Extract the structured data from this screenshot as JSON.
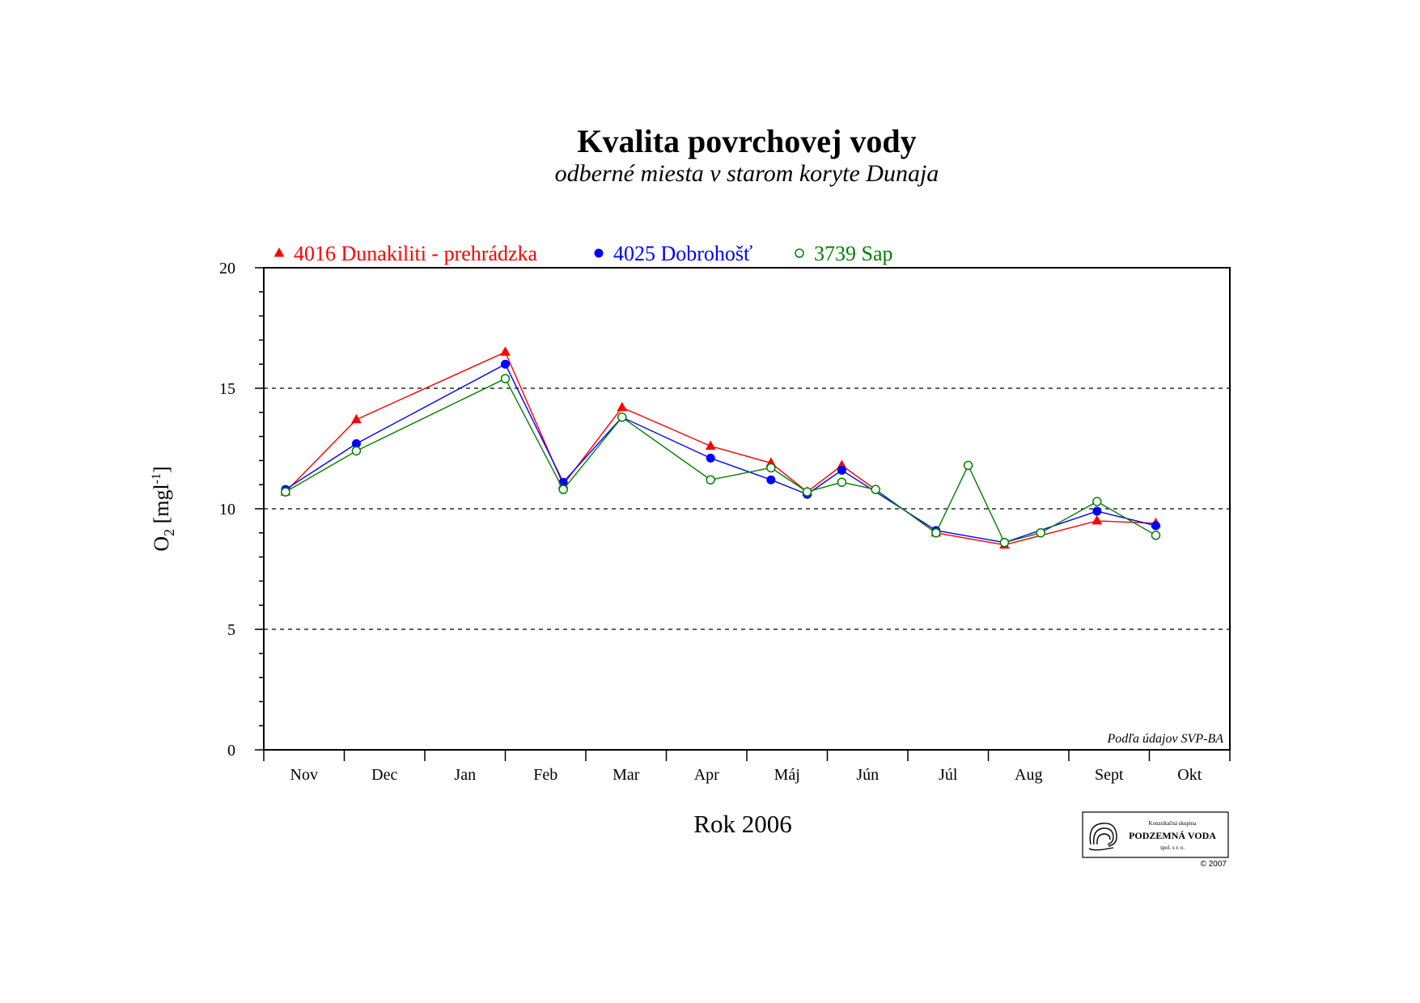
{
  "chart_data": {
    "type": "line",
    "title": "Kvalita povrchovej vody",
    "subtitle": "odberné miesta v starom koryte Dunaja",
    "xlabel": "Rok 2006",
    "ylabel_main": "O",
    "ylabel_sub": "2",
    "ylabel_unit": "[mgl",
    "ylabel_sup": "-1",
    "ylabel_close": "]",
    "ylim": [
      0,
      20
    ],
    "y_ticks": [
      "0",
      "5",
      "10",
      "15",
      "20"
    ],
    "y_tick_values": [
      0,
      5,
      10,
      15,
      20
    ],
    "grid": "dashed horizontal at 5, 10, 15",
    "x_range": [
      0,
      12
    ],
    "months": [
      "Nov",
      "Dec",
      "Jan",
      "Feb",
      "Mar",
      "Apr",
      "Máj",
      "Jún",
      "Júl",
      "Aug",
      "Sept",
      "Okt"
    ],
    "legend_position": "top-left",
    "series": [
      {
        "name": "4016 Dunakiliti - prehrádzka",
        "color": "#ff0000",
        "marker": "triangle-filled",
        "x": [
          0.27,
          1.15,
          3.0,
          3.72,
          4.45,
          5.55,
          6.3,
          6.75,
          7.18,
          8.35,
          9.2,
          10.35,
          11.08
        ],
        "y": [
          10.7,
          13.7,
          16.5,
          11.0,
          14.2,
          12.6,
          11.9,
          10.7,
          11.8,
          9.0,
          8.5,
          9.5,
          9.4
        ]
      },
      {
        "name": "4025 Dobrohošť",
        "color": "#0000ff",
        "marker": "circle-filled",
        "x": [
          0.27,
          1.15,
          3.0,
          3.72,
          4.45,
          5.55,
          6.3,
          6.75,
          7.18,
          8.35,
          9.2,
          10.35,
          11.08
        ],
        "y": [
          10.8,
          12.7,
          16.0,
          11.1,
          13.8,
          12.1,
          11.2,
          10.6,
          11.6,
          9.1,
          8.6,
          9.9,
          9.3
        ]
      },
      {
        "name": "3739 Sap",
        "color": "#008000",
        "marker": "circle-open",
        "x": [
          0.27,
          1.15,
          3.0,
          3.72,
          4.45,
          5.55,
          6.3,
          6.75,
          7.18,
          7.6,
          8.35,
          8.75,
          9.2,
          9.65,
          10.35,
          11.08
        ],
        "y": [
          10.7,
          12.4,
          15.4,
          10.8,
          13.8,
          11.2,
          11.7,
          10.7,
          11.1,
          10.8,
          9.0,
          11.8,
          8.6,
          9.0,
          10.3,
          8.9
        ]
      }
    ],
    "source_note": "Podľa údajov SVP-BA"
  },
  "logo": {
    "line1": "Konzultačná skupina",
    "line2": "PODZEMNÁ VODA",
    "line3": "spol. s r. o.",
    "copyright": "© 2007"
  }
}
